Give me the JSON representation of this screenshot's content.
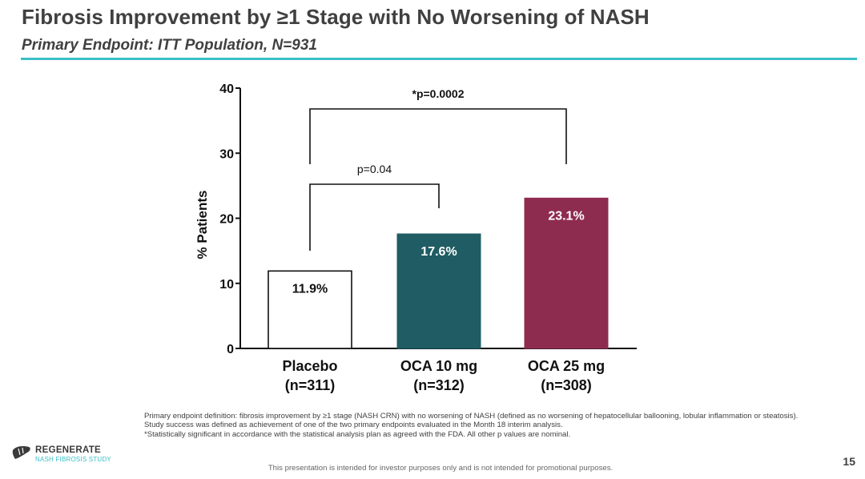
{
  "title": "Fibrosis Improvement by ≥1 Stage with No Worsening of NASH",
  "subtitle": "Primary Endpoint: ITT Population, N=931",
  "colors": {
    "accent": "#3bbfc6",
    "placebo": "#ffffff",
    "oca10": "#1f5c63",
    "oca25": "#8e2c50"
  },
  "chart_data": {
    "type": "bar",
    "categories": [
      "Placebo",
      "OCA 10 mg",
      "OCA 25 mg"
    ],
    "category_n": [
      "(n=311)",
      "(n=312)",
      "(n=308)"
    ],
    "values": [
      11.9,
      17.6,
      23.1
    ],
    "value_labels": [
      "11.9%",
      "17.6%",
      "23.1%"
    ],
    "ylabel": "% Patients",
    "ylim": [
      0,
      40
    ],
    "yticks": [
      0,
      10,
      20,
      30,
      40
    ],
    "grid": false,
    "bar_colors": [
      "#ffffff",
      "#1f5c63",
      "#8e2c50"
    ],
    "annotations": [
      {
        "from": 0,
        "to": 1,
        "text": "p=0.04",
        "bold": false
      },
      {
        "from": 0,
        "to": 2,
        "text": "*p=0.0002",
        "bold": true
      }
    ]
  },
  "footnotes": [
    "Primary endpoint definition: fibrosis improvement by ≥1 stage (NASH CRN) with no worsening of NASH (defined as no worsening of hepatocellular ballooning, lobular inflammation or steatosis).",
    "Study success was defined as achievement of one of the two primary endpoints evaluated in the Month 18 interim analysis.",
    "*Statistically significant in accordance with the statistical analysis plan as agreed with the FDA. All other p values are nominal."
  ],
  "disclaimer": "This presentation is intended for investor purposes only and is not intended for promotional purposes.",
  "logo": {
    "line1": "REGENERATE",
    "line2": "NASH FIBROSIS STUDY"
  },
  "page_number": "15"
}
